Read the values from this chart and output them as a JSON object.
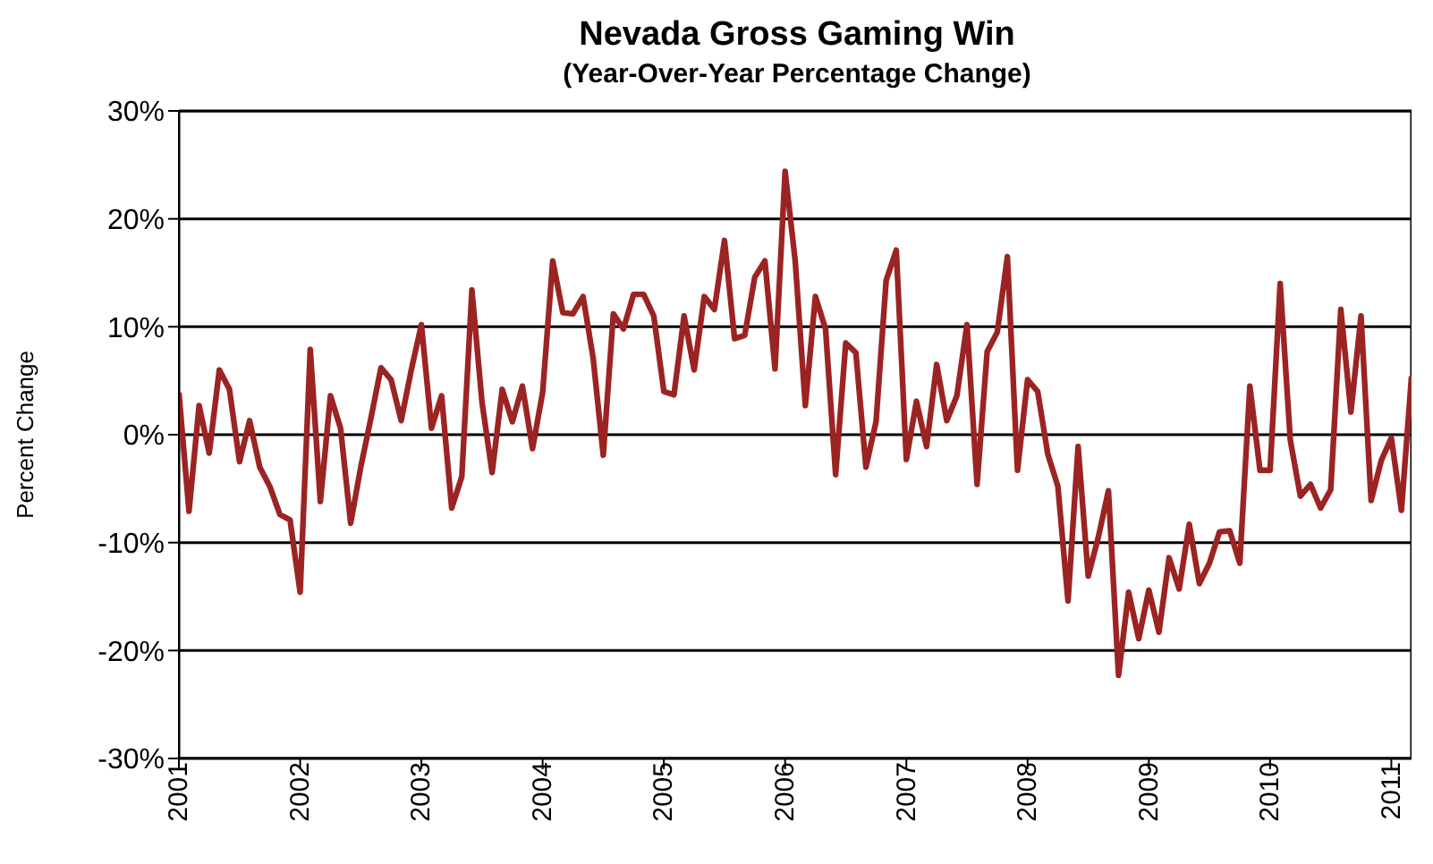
{
  "chart_data": {
    "type": "line",
    "title": "Nevada Gross Gaming Win",
    "subtitle": "(Year-Over-Year Percentage Change)",
    "ylabel": "Percent Change",
    "x": [
      "2001-01",
      "2001-02",
      "2001-03",
      "2001-04",
      "2001-05",
      "2001-06",
      "2001-07",
      "2001-08",
      "2001-09",
      "2001-10",
      "2001-11",
      "2001-12",
      "2002-01",
      "2002-02",
      "2002-03",
      "2002-04",
      "2002-05",
      "2002-06",
      "2002-07",
      "2002-08",
      "2002-09",
      "2002-10",
      "2002-11",
      "2002-12",
      "2003-01",
      "2003-02",
      "2003-03",
      "2003-04",
      "2003-05",
      "2003-06",
      "2003-07",
      "2003-08",
      "2003-09",
      "2003-10",
      "2003-11",
      "2003-12",
      "2004-01",
      "2004-02",
      "2004-03",
      "2004-04",
      "2004-05",
      "2004-06",
      "2004-07",
      "2004-08",
      "2004-09",
      "2004-10",
      "2004-11",
      "2004-12",
      "2005-01",
      "2005-02",
      "2005-03",
      "2005-04",
      "2005-05",
      "2005-06",
      "2005-07",
      "2005-08",
      "2005-09",
      "2005-10",
      "2005-11",
      "2005-12",
      "2006-01",
      "2006-02",
      "2006-03",
      "2006-04",
      "2006-05",
      "2006-06",
      "2006-07",
      "2006-08",
      "2006-09",
      "2006-10",
      "2006-11",
      "2006-12",
      "2007-01",
      "2007-02",
      "2007-03",
      "2007-04",
      "2007-05",
      "2007-06",
      "2007-07",
      "2007-08",
      "2007-09",
      "2007-10",
      "2007-11",
      "2007-12",
      "2008-01",
      "2008-02",
      "2008-03",
      "2008-04",
      "2008-05",
      "2008-06",
      "2008-07",
      "2008-08",
      "2008-09",
      "2008-10",
      "2008-11",
      "2008-12",
      "2009-01",
      "2009-02",
      "2009-03",
      "2009-04",
      "2009-05",
      "2009-06",
      "2009-07",
      "2009-08",
      "2009-09",
      "2009-10",
      "2009-11",
      "2009-12",
      "2010-01",
      "2010-02",
      "2010-03",
      "2010-04",
      "2010-05",
      "2010-06",
      "2010-07",
      "2010-08",
      "2010-09",
      "2010-10",
      "2010-11",
      "2010-12",
      "2011-01",
      "2011-02",
      "2011-03"
    ],
    "series": [
      {
        "color": "#9b2423",
        "values": [
          3.9,
          -7.1,
          2.7,
          -1.7,
          6.0,
          4.2,
          -2.5,
          1.3,
          -3.0,
          -4.8,
          -7.4,
          -7.9,
          -14.6,
          7.9,
          -6.2,
          3.6,
          0.6,
          -8.2,
          -3.0,
          1.5,
          6.2,
          5.1,
          1.3,
          6.0,
          10.2,
          0.6,
          3.6,
          -6.8,
          -3.9,
          13.4,
          3.0,
          -3.5,
          4.2,
          1.2,
          4.5,
          -1.3,
          3.9,
          16.1,
          11.3,
          11.2,
          12.8,
          7.1,
          -1.9,
          11.2,
          9.8,
          13.0,
          13.0,
          11.0,
          4.0,
          3.7,
          11.0,
          6.0,
          12.8,
          11.6,
          18.0,
          8.9,
          9.2,
          14.6,
          16.1,
          6.1,
          24.4,
          16.1,
          2.7,
          12.8,
          9.8,
          -3.7,
          8.5,
          7.6,
          -3.0,
          1.2,
          14.3,
          17.1,
          -2.3,
          3.1,
          -1.1,
          6.5,
          1.3,
          3.6,
          10.2,
          -4.6,
          7.7,
          9.5,
          16.5,
          -3.3,
          5.1,
          4.0,
          -1.8,
          -4.8,
          -15.4,
          -1.1,
          -13.1,
          -9.5,
          -5.2,
          -22.3,
          -14.6,
          -18.9,
          -14.4,
          -18.3,
          -11.4,
          -14.3,
          -8.3,
          -13.8,
          -11.9,
          -9.0,
          -8.9,
          -11.9,
          4.5,
          -3.3,
          -3.3,
          14.0,
          -0.5,
          -5.7,
          -4.6,
          -6.8,
          -5.1,
          11.6,
          2.1,
          11.0,
          -6.1,
          -2.4,
          -0.3,
          -7.0,
          5.4
        ]
      }
    ],
    "xlim": [
      "2001-01",
      "2011-03"
    ],
    "xticks": [
      "2001",
      "2002",
      "2003",
      "2004",
      "2005",
      "2006",
      "2007",
      "2008",
      "2009",
      "2010",
      "2011"
    ],
    "ylim": [
      -30,
      30
    ],
    "yticks": [
      {
        "value": -30,
        "label": "-30%"
      },
      {
        "value": -20,
        "label": "-20%"
      },
      {
        "value": -10,
        "label": "-10%"
      },
      {
        "value": 0,
        "label": "0%"
      },
      {
        "value": 10,
        "label": "10%"
      },
      {
        "value": 20,
        "label": "20%"
      },
      {
        "value": 30,
        "label": "30%"
      }
    ],
    "grid": "y",
    "marker": "none",
    "line_style": "solid"
  }
}
